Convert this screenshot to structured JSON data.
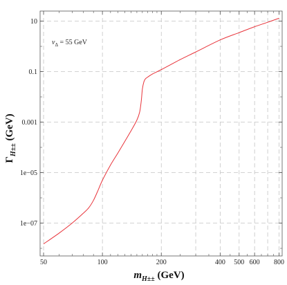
{
  "chart_data": {
    "type": "line",
    "title": "",
    "xlabel": {
      "base": "m",
      "sub": "H±±",
      "unit": " (GeV)"
    },
    "ylabel": {
      "base": "Γ",
      "sub": "H±±",
      "unit": " (GeV)"
    },
    "annotation": {
      "symbol": "v",
      "sub": "Δ",
      "value": " = 55 GeV"
    },
    "xscale": "log",
    "yscale": "log",
    "xlim": [
      48,
      830
    ],
    "ylim": [
      5e-09,
      25
    ],
    "x_tick_labels": [
      "50",
      "100",
      "200",
      "400",
      "500",
      "600",
      "800"
    ],
    "x_tick_values": [
      50,
      100,
      200,
      400,
      500,
      600,
      800
    ],
    "y_tick_labels": [
      "10",
      "0.1",
      "0.001",
      "1e−05",
      "1e−07"
    ],
    "y_tick_values": [
      10,
      0.1,
      0.001,
      1e-05,
      1e-07
    ],
    "grid": true,
    "series": [
      {
        "color": "#e8333a",
        "x": [
          50,
          60,
          70,
          80,
          85,
          90,
          95,
          100,
          110,
          120,
          130,
          140,
          150,
          155,
          158,
          160,
          163,
          166,
          170,
          180,
          200,
          250,
          300,
          400,
          500,
          600,
          700,
          800
        ],
        "y": [
          1.5e-08,
          4e-08,
          1e-07,
          2.5e-07,
          4e-07,
          8e-07,
          2e-06,
          5e-06,
          2e-05,
          6e-05,
          0.00017,
          0.00045,
          0.0012,
          0.0025,
          0.007,
          0.02,
          0.04,
          0.052,
          0.06,
          0.08,
          0.12,
          0.3,
          0.6,
          1.8,
          3.5,
          6,
          9,
          13
        ]
      }
    ]
  }
}
